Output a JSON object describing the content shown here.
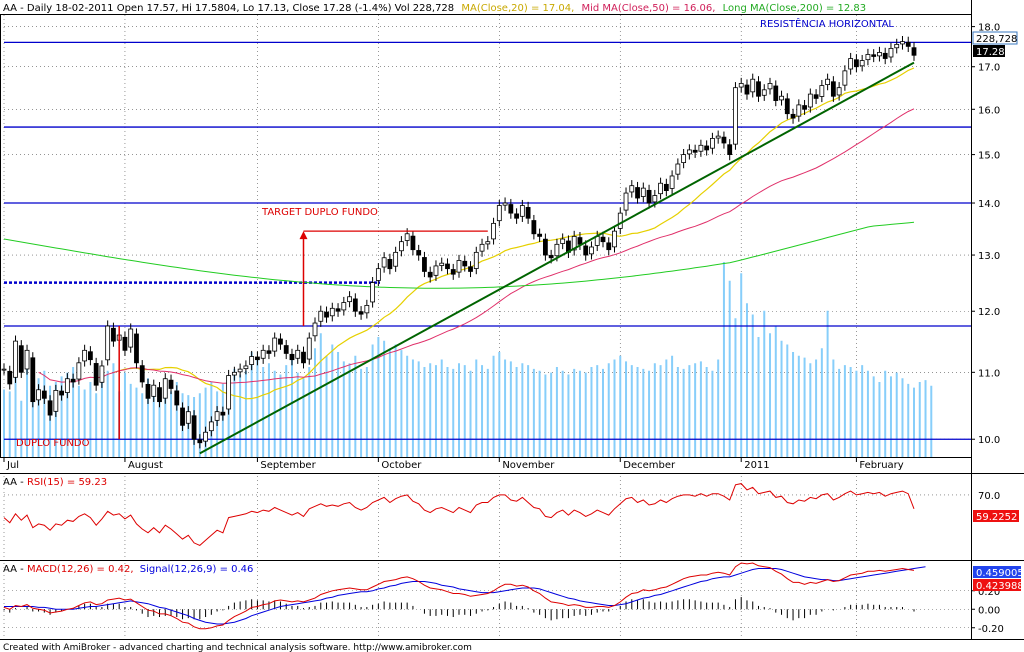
{
  "header": {
    "main": "AA - Daily 18-02-2011 Open 17.57, Hi 17.5804, Lo 17.13, Close 17.28 (-1.4%) Vol 228,728",
    "ma_short": "MA(Close,20) = 17.04,",
    "ma_mid": "Mid MA(Close,50) = 16.06,",
    "ma_long": "Long MA(Close,200) = 12.83"
  },
  "rsi_header": {
    "prefix": "AA - ",
    "label": "RSI(15) = 59.23"
  },
  "macd_header": {
    "prefix": "AA - ",
    "macd": "MACD(12,26) = 0.42,",
    "signal": "Signal(12,26,9) = 0.46"
  },
  "footer": "Created with AmiBroker - advanced charting and technical analysis software. http://www.amibroker.com",
  "annotations": {
    "resistencia": "RESISTÊNCIA HORIZONTAL",
    "target": "TARGET DUPLO FUNDO",
    "duplo_fundo": "DUPLO FUNDO"
  },
  "badges": {
    "volume": "228,728",
    "close": "17.28",
    "rsi": "59.2252",
    "macd_signal": "0.459005",
    "macd": "0.423988"
  },
  "colors": {
    "candle": "#000000",
    "volume": "#87cefa",
    "ma20": "#e6d000",
    "ma50": "#e0306a",
    "ma200": "#22cc22",
    "horizontal_lines": "#0000cc",
    "trendline": "#006400",
    "annotation_red": "#dd0000",
    "rsi_line": "#dd0000",
    "macd_line": "#dd0000",
    "signal_line": "#0000dd"
  },
  "chart_data": [
    {
      "type": "candlestick",
      "y_axis_ticks": [
        "10.0",
        "11.0",
        "12.0",
        "13.0",
        "14.0",
        "15.0",
        "16.0",
        "17.0",
        "18.0"
      ],
      "y_scale": "log",
      "ylim": [
        9.75,
        18.3
      ],
      "x_axis_labels": [
        "Jul",
        "August",
        "September",
        "October",
        "November",
        "December",
        "2011",
        "February"
      ],
      "x_label_index": [
        0,
        21,
        44,
        65,
        86,
        107,
        128,
        148
      ],
      "horizontal_levels": [
        17.6,
        15.6,
        14.0,
        11.75,
        10.0
      ],
      "dotted_level": 12.5,
      "trendline": {
        "from": {
          "index": 34,
          "value": 9.8
        },
        "to": {
          "index": 158,
          "value": 17.1
        }
      },
      "target_arrow": {
        "index": 52,
        "from": 11.75,
        "to": 13.45
      },
      "target_line": {
        "from_index": 52,
        "to_index": 84,
        "value": 13.45
      },
      "duplo_fundo_marker": {
        "index": 20,
        "from": 10.0,
        "to": 11.75
      },
      "close": [
        11.05,
        10.82,
        11.5,
        11.0,
        11.35,
        10.55,
        10.73,
        10.6,
        10.35,
        10.72,
        10.65,
        10.9,
        10.85,
        11.15,
        11.35,
        11.2,
        10.8,
        11.1,
        11.75,
        11.5,
        11.6,
        11.35,
        11.7,
        11.15,
        10.85,
        10.6,
        10.8,
        10.55,
        10.9,
        10.75,
        10.5,
        10.2,
        10.4,
        10.0,
        9.95,
        10.1,
        10.25,
        10.4,
        10.35,
        10.95,
        11.0,
        11.05,
        11.1,
        11.25,
        11.2,
        11.35,
        11.3,
        11.55,
        11.45,
        11.3,
        11.2,
        11.35,
        11.15,
        11.55,
        11.8,
        12.0,
        11.9,
        12.05,
        12.0,
        12.15,
        12.25,
        12.0,
        11.95,
        12.1,
        12.5,
        12.75,
        12.95,
        12.75,
        13.05,
        13.25,
        13.4,
        13.1,
        13.0,
        12.7,
        12.6,
        12.8,
        12.85,
        12.75,
        12.65,
        12.9,
        12.8,
        12.7,
        13.05,
        13.2,
        13.25,
        13.6,
        13.95,
        14.0,
        13.8,
        13.7,
        13.95,
        13.7,
        13.4,
        13.35,
        13.0,
        12.95,
        13.2,
        13.3,
        13.05,
        13.35,
        13.2,
        13.0,
        13.15,
        13.35,
        13.25,
        13.1,
        13.45,
        13.8,
        14.2,
        14.35,
        14.1,
        14.3,
        14.0,
        14.15,
        14.4,
        14.25,
        14.55,
        14.8,
        15.0,
        15.1,
        15.05,
        15.2,
        15.1,
        15.35,
        15.4,
        15.25,
        15.0,
        16.5,
        16.6,
        16.35,
        16.7,
        16.3,
        16.45,
        16.6,
        16.2,
        16.3,
        15.9,
        15.8,
        16.1,
        16.0,
        16.35,
        16.25,
        16.55,
        16.7,
        16.3,
        16.5,
        16.9,
        17.2,
        17.0,
        17.15,
        17.3,
        17.25,
        17.35,
        17.2,
        17.45,
        17.55,
        17.62,
        17.5,
        17.28
      ],
      "volume_ticks_note": "volume bars share the price panel; volume shown in thousands",
      "volume_k": [
        180,
        175,
        220,
        150,
        260,
        170,
        210,
        230,
        190,
        200,
        215,
        225,
        240,
        190,
        180,
        200,
        170,
        210,
        230,
        250,
        175,
        225,
        195,
        185,
        170,
        210,
        190,
        160,
        180,
        175,
        200,
        170,
        165,
        160,
        170,
        185,
        200,
        175,
        195,
        210,
        235,
        220,
        230,
        280,
        260,
        240,
        250,
        230,
        220,
        245,
        260,
        225,
        210,
        240,
        290,
        330,
        270,
        300,
        280,
        255,
        250,
        270,
        235,
        240,
        300,
        320,
        310,
        290,
        300,
        285,
        270,
        260,
        255,
        240,
        250,
        245,
        260,
        240,
        235,
        250,
        245,
        230,
        260,
        245,
        235,
        270,
        280,
        260,
        255,
        240,
        250,
        245,
        235,
        230,
        220,
        225,
        240,
        230,
        220,
        235,
        230,
        225,
        240,
        245,
        235,
        250,
        260,
        270,
        255,
        245,
        240,
        235,
        230,
        250,
        245,
        260,
        270,
        240,
        235,
        245,
        250,
        255,
        240,
        230,
        260,
        520,
        470,
        370,
        490,
        410,
        380,
        320,
        390,
        330,
        350,
        310,
        300,
        280,
        270,
        265,
        250,
        260,
        290,
        390,
        260,
        235,
        245,
        240,
        230,
        245,
        230,
        215,
        200,
        230,
        215,
        225,
        210,
        195,
        185,
        200,
        205,
        190
      ]
    },
    {
      "type": "line",
      "title": "RSI(15)",
      "y_axis_ticks": [
        "70.0"
      ],
      "ylim": [
        20,
        85
      ],
      "series": [
        {
          "name": "RSI(15)",
          "values": [
            52,
            48,
            55,
            50,
            54,
            44,
            47,
            46,
            42,
            47,
            46,
            50,
            49,
            53,
            55,
            52,
            46,
            51,
            57,
            54,
            55,
            51,
            54,
            47,
            43,
            40,
            44,
            40,
            46,
            43,
            39,
            35,
            38,
            32,
            30,
            34,
            38,
            42,
            40,
            52,
            53,
            54,
            55,
            57,
            56,
            58,
            57,
            60,
            58,
            56,
            54,
            56,
            53,
            59,
            61,
            63,
            61,
            62,
            61,
            63,
            64,
            60,
            58,
            60,
            64,
            66,
            68,
            64,
            67,
            69,
            70,
            65,
            63,
            58,
            56,
            59,
            60,
            58,
            56,
            60,
            58,
            56,
            62,
            64,
            64,
            68,
            70,
            70,
            66,
            65,
            68,
            64,
            60,
            59,
            53,
            52,
            56,
            58,
            54,
            58,
            56,
            53,
            55,
            58,
            56,
            54,
            59,
            63,
            67,
            68,
            64,
            66,
            62,
            63,
            66,
            64,
            67,
            69,
            70,
            70,
            69,
            71,
            69,
            71,
            71,
            69,
            66,
            78,
            79,
            74,
            76,
            71,
            72,
            73,
            68,
            69,
            64,
            63,
            66,
            65,
            68,
            67,
            70,
            71,
            66,
            68,
            71,
            73,
            70,
            71,
            72,
            71,
            72,
            69,
            71,
            72,
            73,
            71,
            59
          ]
        }
      ]
    },
    {
      "type": "line",
      "title": "MACD(12,26) / Signal(12,26,9)",
      "y_axis_ticks": [
        "0.20",
        "0.00",
        "-0.20"
      ],
      "ylim": [
        -0.3,
        0.5
      ],
      "series": [
        {
          "name": "MACD(12,26)",
          "values": [
            0.02,
            0.0,
            0.04,
            0.03,
            0.05,
            0.01,
            0.0,
            -0.01,
            -0.04,
            -0.03,
            -0.02,
            0.0,
            0.01,
            0.04,
            0.07,
            0.08,
            0.05,
            0.06,
            0.1,
            0.11,
            0.12,
            0.1,
            0.11,
            0.07,
            0.03,
            -0.01,
            -0.02,
            -0.05,
            -0.05,
            -0.07,
            -0.1,
            -0.14,
            -0.15,
            -0.19,
            -0.21,
            -0.21,
            -0.2,
            -0.18,
            -0.17,
            -0.12,
            -0.08,
            -0.05,
            -0.02,
            0.02,
            0.03,
            0.05,
            0.06,
            0.09,
            0.1,
            0.09,
            0.08,
            0.09,
            0.08,
            0.1,
            0.12,
            0.16,
            0.18,
            0.2,
            0.21,
            0.22,
            0.23,
            0.22,
            0.21,
            0.21,
            0.24,
            0.27,
            0.3,
            0.31,
            0.32,
            0.34,
            0.35,
            0.33,
            0.3,
            0.26,
            0.23,
            0.22,
            0.21,
            0.19,
            0.17,
            0.17,
            0.16,
            0.14,
            0.15,
            0.16,
            0.17,
            0.2,
            0.24,
            0.27,
            0.27,
            0.25,
            0.26,
            0.24,
            0.2,
            0.17,
            0.12,
            0.08,
            0.07,
            0.06,
            0.04,
            0.05,
            0.04,
            0.02,
            0.02,
            0.03,
            0.03,
            0.02,
            0.04,
            0.08,
            0.13,
            0.17,
            0.18,
            0.21,
            0.2,
            0.21,
            0.23,
            0.24,
            0.27,
            0.3,
            0.33,
            0.35,
            0.36,
            0.37,
            0.37,
            0.39,
            0.4,
            0.39,
            0.37,
            0.46,
            0.5,
            0.49,
            0.5,
            0.47,
            0.46,
            0.45,
            0.41,
            0.38,
            0.33,
            0.29,
            0.29,
            0.27,
            0.29,
            0.28,
            0.3,
            0.32,
            0.3,
            0.31,
            0.34,
            0.37,
            0.38,
            0.39,
            0.41,
            0.41,
            0.42,
            0.41,
            0.42,
            0.43,
            0.44,
            0.43,
            0.42
          ]
        },
        {
          "name": "Signal(12,26,9)",
          "values": [
            0.03,
            0.03,
            0.03,
            0.03,
            0.03,
            0.03,
            0.02,
            0.02,
            0.01,
            0.0,
            0.0,
            0.0,
            0.0,
            0.01,
            0.02,
            0.03,
            0.03,
            0.04,
            0.05,
            0.06,
            0.07,
            0.08,
            0.09,
            0.08,
            0.07,
            0.06,
            0.04,
            0.02,
            0.01,
            -0.01,
            -0.03,
            -0.05,
            -0.07,
            -0.1,
            -0.12,
            -0.14,
            -0.15,
            -0.16,
            -0.16,
            -0.15,
            -0.14,
            -0.12,
            -0.1,
            -0.07,
            -0.05,
            -0.03,
            -0.01,
            0.01,
            0.03,
            0.04,
            0.05,
            0.06,
            0.07,
            0.08,
            0.09,
            0.1,
            0.12,
            0.13,
            0.15,
            0.16,
            0.17,
            0.18,
            0.19,
            0.19,
            0.2,
            0.22,
            0.23,
            0.25,
            0.26,
            0.28,
            0.29,
            0.3,
            0.3,
            0.3,
            0.29,
            0.28,
            0.26,
            0.25,
            0.24,
            0.22,
            0.21,
            0.2,
            0.19,
            0.18,
            0.18,
            0.18,
            0.19,
            0.2,
            0.21,
            0.22,
            0.23,
            0.23,
            0.23,
            0.22,
            0.2,
            0.18,
            0.16,
            0.14,
            0.12,
            0.11,
            0.09,
            0.08,
            0.07,
            0.06,
            0.05,
            0.04,
            0.04,
            0.05,
            0.06,
            0.08,
            0.1,
            0.12,
            0.13,
            0.15,
            0.16,
            0.18,
            0.2,
            0.22,
            0.24,
            0.26,
            0.28,
            0.3,
            0.31,
            0.33,
            0.34,
            0.35,
            0.35,
            0.37,
            0.39,
            0.41,
            0.43,
            0.44,
            0.44,
            0.44,
            0.44,
            0.43,
            0.41,
            0.39,
            0.37,
            0.35,
            0.34,
            0.33,
            0.32,
            0.32,
            0.31,
            0.31,
            0.32,
            0.33,
            0.34,
            0.35,
            0.36,
            0.37,
            0.38,
            0.39,
            0.4,
            0.41,
            0.42,
            0.43,
            0.44,
            0.45,
            0.46
          ]
        }
      ]
    }
  ]
}
